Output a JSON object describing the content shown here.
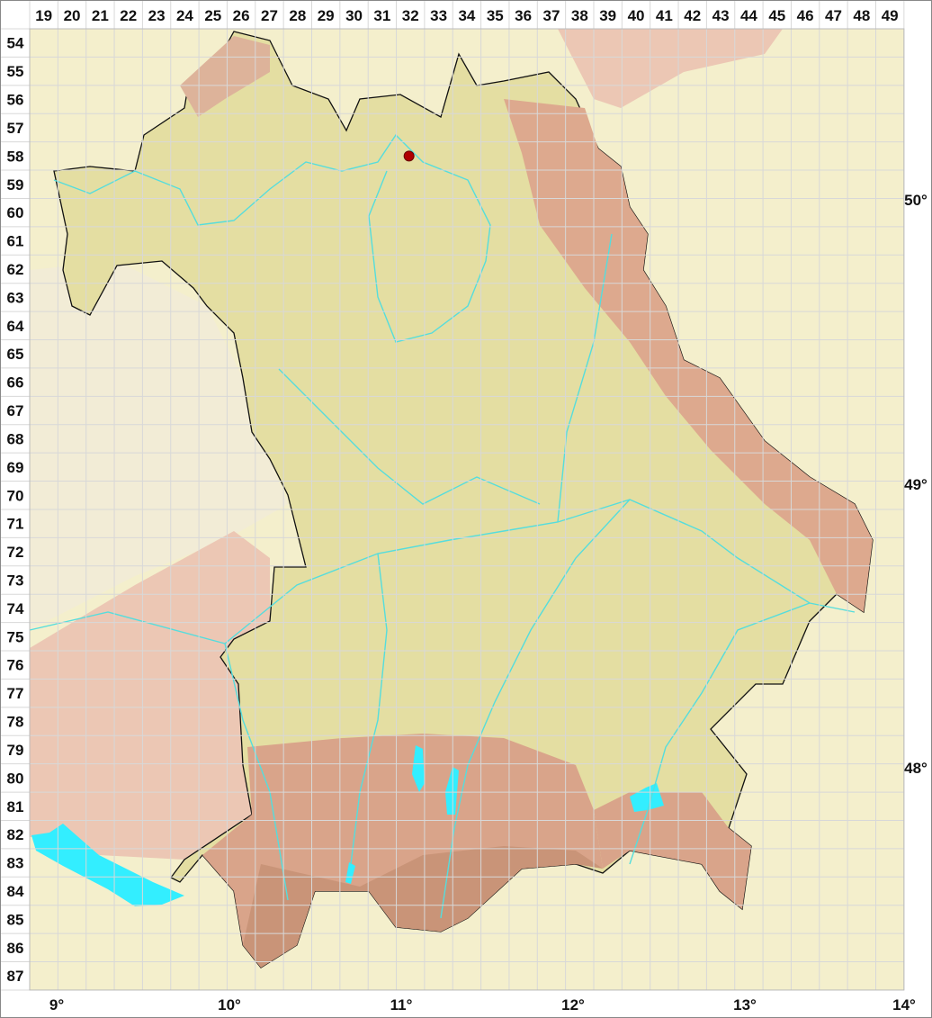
{
  "grid": {
    "columns": [
      "19",
      "20",
      "21",
      "22",
      "23",
      "24",
      "25",
      "26",
      "27",
      "28",
      "29",
      "30",
      "31",
      "32",
      "33",
      "34",
      "35",
      "36",
      "37",
      "38",
      "39",
      "40",
      "41",
      "42",
      "43",
      "44",
      "45",
      "46",
      "47",
      "48",
      "49"
    ],
    "rows": [
      "54",
      "55",
      "56",
      "57",
      "58",
      "59",
      "60",
      "61",
      "62",
      "63",
      "64",
      "65",
      "66",
      "67",
      "68",
      "69",
      "70",
      "71",
      "72",
      "73",
      "74",
      "75",
      "76",
      "77",
      "78",
      "79",
      "80",
      "81",
      "82",
      "83",
      "84",
      "85",
      "86",
      "87"
    ]
  },
  "longitude_labels": [
    "9°",
    "10°",
    "11°",
    "12°",
    "13°",
    "14°"
  ],
  "latitude_labels": [
    "50°",
    "49°",
    "48°"
  ],
  "marker": {
    "type": "occurrence-dot",
    "grid_column": "32",
    "grid_row": "58",
    "color": "#b00000"
  },
  "colors": {
    "water": "#33eeff",
    "river": "#55dddd",
    "lowland": "#e4dea2",
    "upland": "#d8a48a",
    "outside": "#f4efcc",
    "border": "#111111",
    "grid": "#d8d8d8"
  }
}
